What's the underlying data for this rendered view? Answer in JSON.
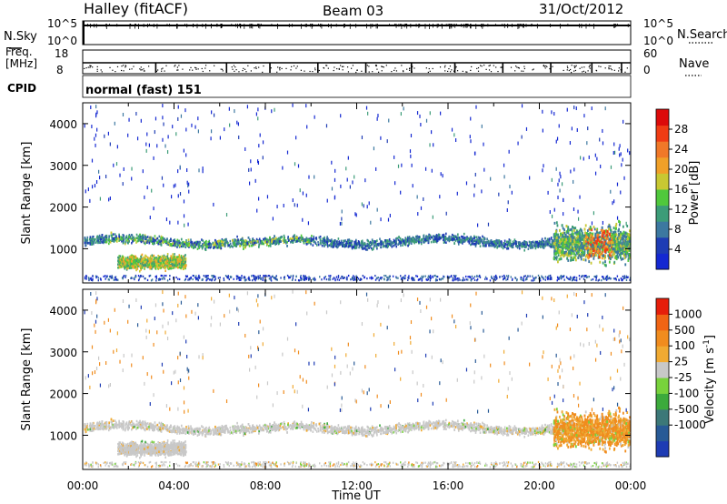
{
  "header": {
    "station": "Halley (fitACF)",
    "beam": "Beam 03",
    "date": "31/Oct/2012"
  },
  "top_panel": {
    "left_label": "N.Sky",
    "left_ticks": [
      "10^5",
      "10^0"
    ],
    "right_label": "N.Search",
    "right_ticks": [
      "10^5",
      "10^0"
    ]
  },
  "freq_panel": {
    "left_label_1": "Freq.",
    "left_label_2": "[MHz]",
    "left_ticks": [
      "18",
      "8"
    ],
    "right_label": "Nave",
    "right_ticks": [
      "60",
      "0"
    ]
  },
  "cpid": {
    "label": "CPID",
    "value": "normal (fast) 151"
  },
  "colors": {
    "power_scale": [
      "#1428d2",
      "#1e3cb4",
      "#3c78a0",
      "#3c9c78",
      "#50c83c",
      "#c8c832",
      "#f0a028",
      "#f07828",
      "#f03c14",
      "#dc0a0a"
    ],
    "velocity_scale": [
      "#1e3cb4",
      "#285a96",
      "#3c7878",
      "#3caa3c",
      "#78d23c",
      "#c8c8c8",
      "#f0aa32",
      "#f08c1e",
      "#f06414",
      "#e61e0a"
    ]
  },
  "chart_data": [
    {
      "type": "heatmap",
      "name_hint": "power",
      "ylabel": "Slant Range [km]",
      "xlabel": "Time UT",
      "x_ticks": [
        "00:00",
        "04:00",
        "08:00",
        "12:00",
        "16:00",
        "20:00",
        "00:00"
      ],
      "xlim_hours": [
        0,
        24
      ],
      "y_ticks": [
        1000,
        2000,
        3000,
        4000
      ],
      "ylim": [
        180,
        4500
      ],
      "colorbar": {
        "label": "Power [dB]",
        "range": [
          0,
          32
        ],
        "ticks": [
          4,
          8,
          12,
          16,
          20,
          24,
          28
        ]
      },
      "features": [
        {
          "t_start": 0,
          "t_end": 21,
          "range_center": 1200,
          "description": "main echo band"
        },
        {
          "t_start": 1.5,
          "t_end": 4.5,
          "range_center": 700,
          "description": "lower patch"
        },
        {
          "t_start": 20.5,
          "t_end": 24,
          "range_center": 1200,
          "description": "late strong echoes"
        }
      ]
    },
    {
      "type": "heatmap",
      "name_hint": "velocity",
      "ylabel": "Slant Range [km]",
      "xlabel": "Time UT",
      "x_ticks": [
        "00:00",
        "04:00",
        "08:00",
        "12:00",
        "16:00",
        "20:00",
        "00:00"
      ],
      "xlim_hours": [
        0,
        24
      ],
      "y_ticks": [
        1000,
        2000,
        3000,
        4000
      ],
      "ylim": [
        180,
        4500
      ],
      "colorbar": {
        "label": "Velocity [m s^-1]",
        "ticks": [
          "1000",
          "500",
          "100",
          "25",
          "-25",
          "-100",
          "-500",
          "-1000"
        ]
      }
    }
  ]
}
